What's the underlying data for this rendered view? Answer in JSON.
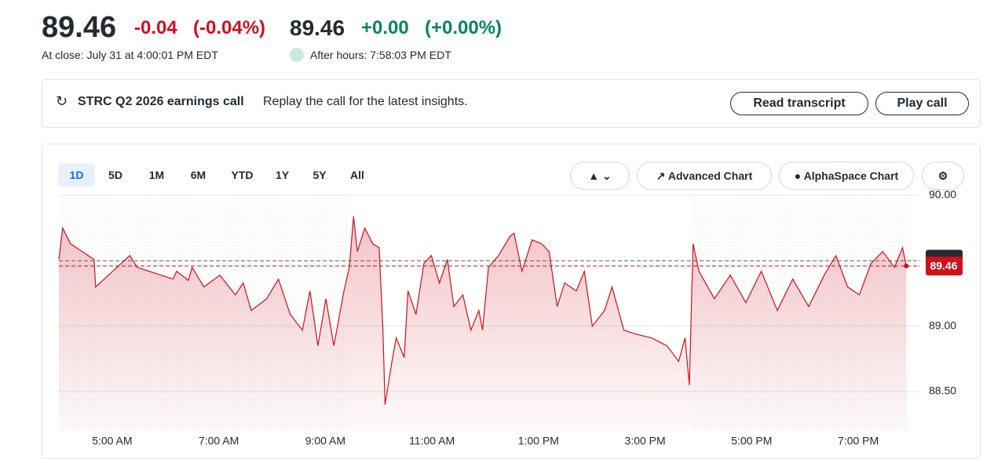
{
  "header": {
    "price": "89.46",
    "change": "-0.04",
    "change_pct": "(-0.04%)",
    "ah_price": "89.46",
    "ah_change": "+0.00",
    "ah_change_pct": "(+0.00%)",
    "close_note": "At close: July 31 at 4:00:01 PM EDT",
    "ah_note": "After hours: 7:58:03 PM EDT"
  },
  "banner": {
    "title": "STRC Q2 2026 earnings call",
    "text": "Replay the call for the latest insights.",
    "buttons": [
      "Read transcript",
      "Play call"
    ]
  },
  "toolbar": {
    "ranges": [
      "1D",
      "5D",
      "1M",
      "6M",
      "YTD",
      "1Y",
      "5Y",
      "All"
    ],
    "buttons": [
      "Advanced Chart",
      "AlphaSpace Chart"
    ]
  },
  "chart_data": {
    "type": "line",
    "color": "#d0101c",
    "x": [
      4.0,
      4.07,
      4.22,
      4.66,
      4.69,
      5.33,
      5.47,
      6.14,
      6.21,
      6.43,
      6.5,
      6.72,
      7.02,
      7.31,
      7.46,
      7.61,
      7.9,
      8.12,
      8.34,
      8.57,
      8.71,
      8.86,
      9.01,
      9.16,
      9.35,
      9.45,
      9.53,
      9.6,
      9.74,
      9.89,
      10.01,
      10.08,
      10.12,
      10.25,
      10.33,
      10.48,
      10.55,
      10.7,
      10.85,
      10.99,
      11.14,
      11.29,
      11.41,
      11.58,
      11.73,
      11.88,
      11.95,
      12.06,
      12.25,
      12.47,
      12.54,
      12.69,
      12.88,
      13.06,
      13.2,
      13.35,
      13.49,
      13.71,
      13.86,
      14.01,
      14.24,
      14.38,
      14.6,
      14.82,
      15.12,
      15.41,
      15.63,
      15.75,
      15.83,
      15.9,
      16.01,
      16.3,
      16.6,
      16.89,
      17.18,
      17.48,
      17.77,
      18.07,
      18.36,
      18.58,
      18.8,
      19.02,
      19.24,
      19.46,
      19.68,
      19.83,
      19.9
    ],
    "values": [
      89.51,
      89.75,
      89.63,
      89.51,
      89.3,
      89.54,
      89.45,
      89.36,
      89.42,
      89.35,
      89.45,
      89.3,
      89.39,
      89.24,
      89.33,
      89.12,
      89.21,
      89.36,
      89.09,
      88.97,
      89.27,
      88.85,
      89.21,
      88.85,
      89.27,
      89.45,
      89.84,
      89.57,
      89.75,
      89.63,
      89.6,
      88.97,
      88.4,
      88.73,
      88.91,
      88.76,
      89.27,
      89.09,
      89.48,
      89.54,
      89.33,
      89.51,
      89.15,
      89.24,
      88.97,
      89.12,
      88.97,
      89.45,
      89.54,
      89.69,
      89.71,
      89.42,
      89.66,
      89.63,
      89.57,
      89.15,
      89.33,
      89.27,
      89.42,
      89.0,
      89.12,
      89.3,
      88.97,
      88.94,
      88.91,
      88.85,
      88.73,
      88.91,
      88.55,
      89.63,
      89.42,
      89.21,
      89.39,
      89.18,
      89.42,
      89.12,
      89.36,
      89.15,
      89.39,
      89.54,
      89.3,
      89.24,
      89.48,
      89.57,
      89.45,
      89.6,
      89.46
    ],
    "xlim": [
      4,
      20
    ],
    "xticks": [
      {
        "value": 5,
        "label": "5:00 AM"
      },
      {
        "value": 7,
        "label": "7:00 AM"
      },
      {
        "value": 9,
        "label": "9:00 AM"
      },
      {
        "value": 11,
        "label": "11:00 AM"
      },
      {
        "value": 13,
        "label": "1:00 PM"
      },
      {
        "value": 15,
        "label": "3:00 PM"
      },
      {
        "value": 17,
        "label": "5:00 PM"
      },
      {
        "value": 19,
        "label": "7:00 PM"
      }
    ],
    "ylim": [
      88.2,
      90.0
    ],
    "yticks": [
      {
        "value": 90,
        "label": "90.00"
      },
      {
        "value": 89,
        "label": "89.00"
      },
      {
        "value": 88.5,
        "label": "88.50"
      }
    ],
    "previous_close": 89.5,
    "last_price": 89.46,
    "grid": true
  }
}
